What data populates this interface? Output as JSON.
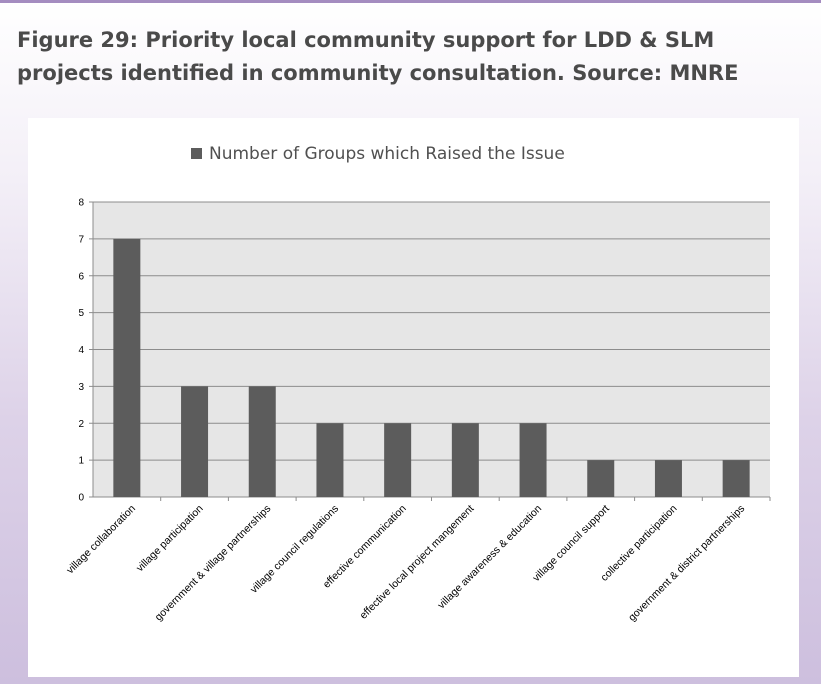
{
  "caption": "Figure 29: Priority local community support for LDD & SLM projects identified in community consultation. Source: MNRE",
  "chart_data": {
    "type": "bar",
    "title": "Number of Groups which Raised the Issue",
    "legend_position": "top",
    "grid": true,
    "categories": [
      "village collaboration",
      "village participation",
      "government & village partnerships",
      "village council regulations",
      "effective communication",
      "effective local project mangement",
      "village awareness & education",
      "village council support",
      "collective participation",
      "government & district partnerships"
    ],
    "series": [
      {
        "name": "Number of Groups which Raised the Issue",
        "values": [
          7,
          3,
          3,
          2,
          2,
          2,
          2,
          1,
          1,
          1
        ]
      }
    ],
    "ylim": [
      0,
      8
    ],
    "yticks": [
      0,
      1,
      2,
      3,
      4,
      5,
      6,
      7,
      8
    ],
    "colors": {
      "bar": "#5c5c5c",
      "plot_background": "#e6e6e6",
      "gridline": "#8c8c8c"
    }
  }
}
